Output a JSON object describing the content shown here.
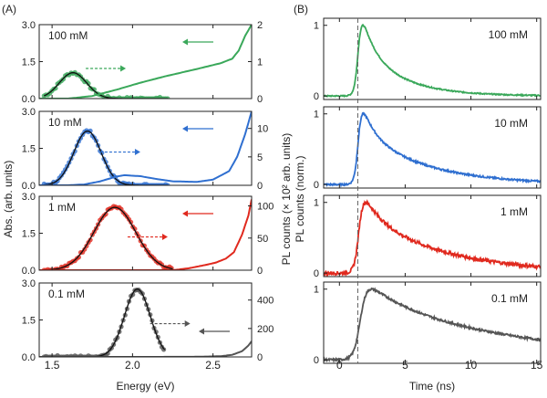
{
  "figure": {
    "panel_a_label": "(A)",
    "panel_b_label": "(B)"
  },
  "chart_data": [
    {
      "id": "A",
      "type": "line",
      "description_label": "(A)",
      "xlabel": "Energy (eV)",
      "xlim": [
        1.42,
        2.74
      ],
      "xticks": [
        1.5,
        2.0,
        2.5
      ],
      "xtick_labels": [
        "1.5",
        "2.0",
        "2.5"
      ],
      "ylabel_left": "Abs. (arb. units)",
      "ylabel_right": "PL counts (× 10² arb. units)",
      "subplots": [
        {
          "label": "100 mM",
          "color": "#3aa85a",
          "left_ylim": [
            0,
            3.0
          ],
          "left_ticks": [
            "0.0",
            "1.5",
            "3.0"
          ],
          "left_tick_values": [
            0,
            1.5,
            3.0
          ],
          "right_ylim": [
            0,
            2
          ],
          "right_ticks": [
            "0",
            "1",
            "2"
          ],
          "right_tick_values": [
            0,
            1,
            2
          ],
          "pl_fit": {
            "center": 1.63,
            "sigma": 0.085,
            "amp": 1.05,
            "xrange": [
              1.45,
              2.22
            ]
          },
          "abs": {
            "x": [
              1.42,
              1.6,
              1.75,
              1.9,
              2.05,
              2.2,
              2.4,
              2.55,
              2.62,
              2.66,
              2.7,
              2.74
            ],
            "y": [
              0,
              0,
              0.07,
              0.24,
              0.43,
              0.6,
              0.8,
              0.96,
              1.08,
              1.3,
              1.7,
              2.0
            ]
          },
          "arrow_pl": "right-dashed",
          "arrow_abs": "left-solid"
        },
        {
          "label": "10 mM",
          "color": "#2f6fd0",
          "left_ylim": [
            0,
            3.0
          ],
          "left_ticks": [
            "0.0",
            "1.5",
            "3.0"
          ],
          "left_tick_values": [
            0,
            1.5,
            3.0
          ],
          "right_ylim": [
            0,
            13
          ],
          "right_ticks": [
            "0",
            "5",
            "10"
          ],
          "right_tick_values": [
            0,
            5,
            10
          ],
          "pl_fit": {
            "center": 1.72,
            "sigma": 0.085,
            "amp": 2.2,
            "xrange": [
              1.45,
              2.22
            ]
          },
          "abs": {
            "x": [
              1.42,
              1.6,
              1.7,
              1.8,
              1.9,
              1.95,
              2.05,
              2.15,
              2.25,
              2.4,
              2.5,
              2.6,
              2.65,
              2.7,
              2.74
            ],
            "y": [
              0,
              0,
              0.15,
              0.7,
              1.55,
              1.78,
              1.6,
              1.1,
              0.7,
              0.6,
              1.0,
              2.5,
              5.0,
              9.0,
              13.0
            ]
          },
          "arrow_pl": "right-dashed",
          "arrow_abs": "left-solid"
        },
        {
          "label": "1 mM",
          "color": "#e0291e",
          "left_ylim": [
            0,
            3.0
          ],
          "left_ticks": [
            "0.0",
            "1.5",
            "3.0"
          ],
          "left_tick_values": [
            0,
            1.5,
            3.0
          ],
          "right_ylim": [
            0,
            115
          ],
          "right_ticks": [
            "0",
            "50",
            "100"
          ],
          "right_tick_values": [
            0,
            50,
            100
          ],
          "pl_fit": {
            "center": 1.89,
            "sigma": 0.13,
            "amp": 2.55,
            "xrange": [
              1.45,
              2.25
            ]
          },
          "abs": {
            "x": [
              1.42,
              1.5,
              1.6,
              2.0,
              2.25,
              2.35,
              2.45,
              2.52,
              2.58,
              2.63,
              2.68,
              2.72,
              2.74
            ],
            "y": [
              0,
              0,
              0,
              0,
              0,
              3,
              8,
              12,
              18,
              28,
              55,
              85,
              110
            ]
          },
          "arrow_pl": "right-dashed",
          "arrow_abs": "left-solid"
        },
        {
          "label": "0.1 mM",
          "color": "#555555",
          "left_ylim": [
            0,
            3.0
          ],
          "left_ticks": [
            "0.0",
            "1.5",
            "3.0"
          ],
          "left_tick_values": [
            0,
            1.5,
            3.0
          ],
          "right_ylim": [
            0,
            520
          ],
          "right_ticks": [
            "0",
            "200",
            "400"
          ],
          "right_tick_values": [
            0,
            200,
            400
          ],
          "pl_fit": {
            "center": 2.03,
            "sigma": 0.08,
            "amp": 2.75,
            "xrange": [
              1.45,
              2.2
            ]
          },
          "abs": {
            "x": [
              1.42,
              1.9,
              2.1,
              2.4,
              2.55,
              2.62,
              2.68,
              2.72,
              2.74
            ],
            "y": [
              0,
              0,
              0,
              1,
              5,
              15,
              40,
              80,
              110
            ]
          },
          "arrow_pl": "right-dashed",
          "arrow_abs": "left-solid"
        }
      ]
    },
    {
      "id": "B",
      "type": "line",
      "description_label": "(B)",
      "xlabel": "Time (ns)",
      "xlim": [
        -1.2,
        15.3
      ],
      "xticks": [
        0,
        5,
        10,
        15
      ],
      "xtick_labels": [
        "0",
        "5",
        "10",
        "15"
      ],
      "ylabel": "PL counts (norm.)",
      "ylim": [
        -0.05,
        1.1
      ],
      "yticks": [
        0,
        1
      ],
      "ytick_labels": [
        "0",
        "1"
      ],
      "excitation_line_time": 1.4,
      "subplots": [
        {
          "label": "100 mM",
          "color": "#3aa85a",
          "rise_center": 1.45,
          "rise_width": 0.15,
          "tau_fast": 0.9,
          "tau_slow": 3.0,
          "frac_fast": 0.45,
          "noise": 0.008
        },
        {
          "label": "10 mM",
          "color": "#2f6fd0",
          "rise_center": 1.45,
          "rise_width": 0.15,
          "tau_fast": 0.9,
          "tau_slow": 4.8,
          "frac_fast": 0.4,
          "noise": 0.012
        },
        {
          "label": "1 mM",
          "color": "#e0291e",
          "rise_center": 1.5,
          "rise_width": 0.18,
          "tau_fast": 1.2,
          "tau_slow": 6.0,
          "frac_fast": 0.3,
          "noise": 0.025
        },
        {
          "label": "0.1 mM",
          "color": "#555555",
          "rise_center": 1.6,
          "rise_width": 0.25,
          "tau_fast": 3.0,
          "tau_slow": 12.0,
          "frac_fast": 0.25,
          "noise": 0.015
        }
      ]
    }
  ]
}
